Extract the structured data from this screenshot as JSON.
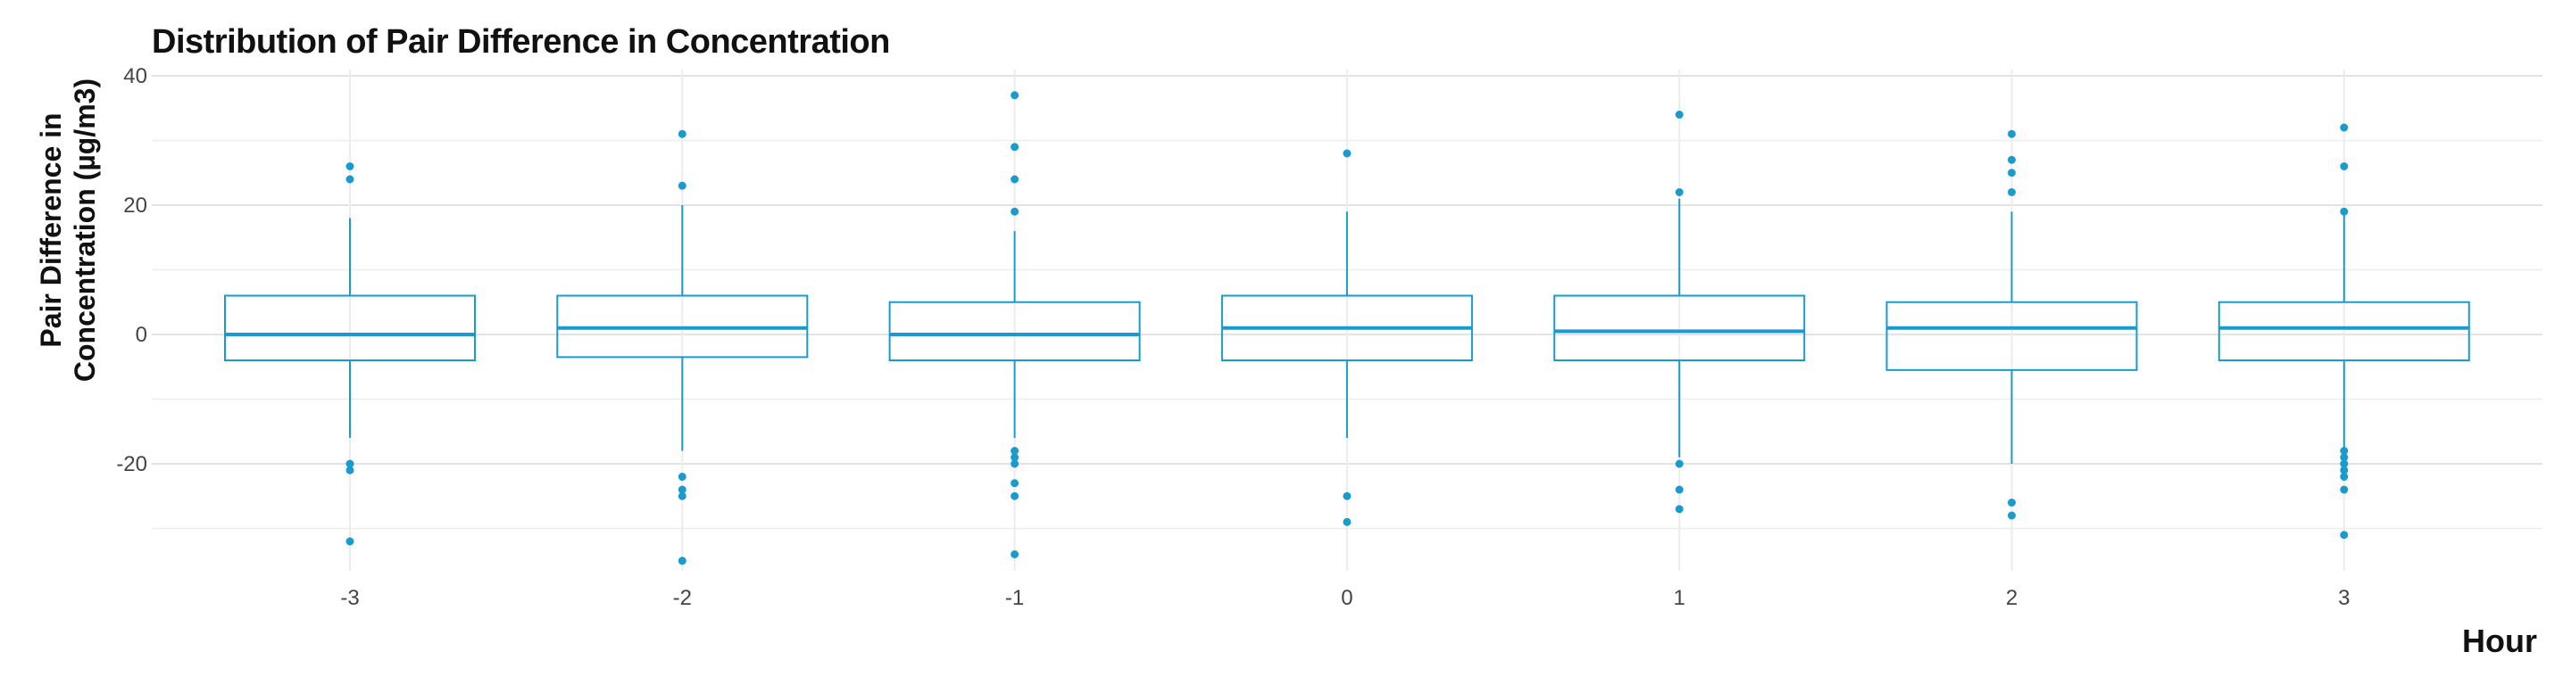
{
  "chart_data": {
    "type": "boxplot",
    "title": "Distribution of Pair Difference in Concentration",
    "xlabel": "Hour",
    "ylabel_lines": [
      "Pair Difference in",
      "Concentration (µg/m3)"
    ],
    "ylim": [
      -38,
      40
    ],
    "y_ticks": [
      -20,
      0,
      20,
      40
    ],
    "grid": true,
    "color": "#1a9bd0",
    "categories": [
      "-3",
      "-2",
      "-1",
      "0",
      "1",
      "2",
      "3"
    ],
    "boxes": [
      {
        "x": "-3",
        "whisker_low": -16,
        "q1": -4,
        "median": 0,
        "q3": 6,
        "whisker_high": 18,
        "outliers": [
          26,
          24,
          -20,
          -21,
          -32
        ]
      },
      {
        "x": "-2",
        "whisker_low": -18,
        "q1": -3.5,
        "median": 1,
        "q3": 6,
        "whisker_high": 20,
        "outliers": [
          31,
          23,
          -22,
          -24,
          -25,
          -35
        ]
      },
      {
        "x": "-1",
        "whisker_low": -16,
        "q1": -4,
        "median": 0,
        "q3": 5,
        "whisker_high": 16,
        "outliers": [
          37,
          29,
          24,
          19,
          -18,
          -19,
          -20,
          -23,
          -25,
          -34
        ]
      },
      {
        "x": "0",
        "whisker_low": -16,
        "q1": -4,
        "median": 1,
        "q3": 6,
        "whisker_high": 19,
        "outliers": [
          28,
          -25,
          -29
        ]
      },
      {
        "x": "1",
        "whisker_low": -19,
        "q1": -4,
        "median": 0.5,
        "q3": 6,
        "whisker_high": 21,
        "outliers": [
          34,
          22,
          -20,
          -24,
          -27
        ]
      },
      {
        "x": "2",
        "whisker_low": -20,
        "q1": -5.5,
        "median": 1,
        "q3": 5,
        "whisker_high": 19,
        "outliers": [
          31,
          27,
          25,
          22,
          -26,
          -28
        ]
      },
      {
        "x": "3",
        "whisker_low": -18,
        "q1": -4,
        "median": 1,
        "q3": 5,
        "whisker_high": 19,
        "outliers": [
          32,
          26,
          19,
          -18,
          -19,
          -20,
          -21,
          -22,
          -24,
          -31
        ]
      }
    ]
  }
}
